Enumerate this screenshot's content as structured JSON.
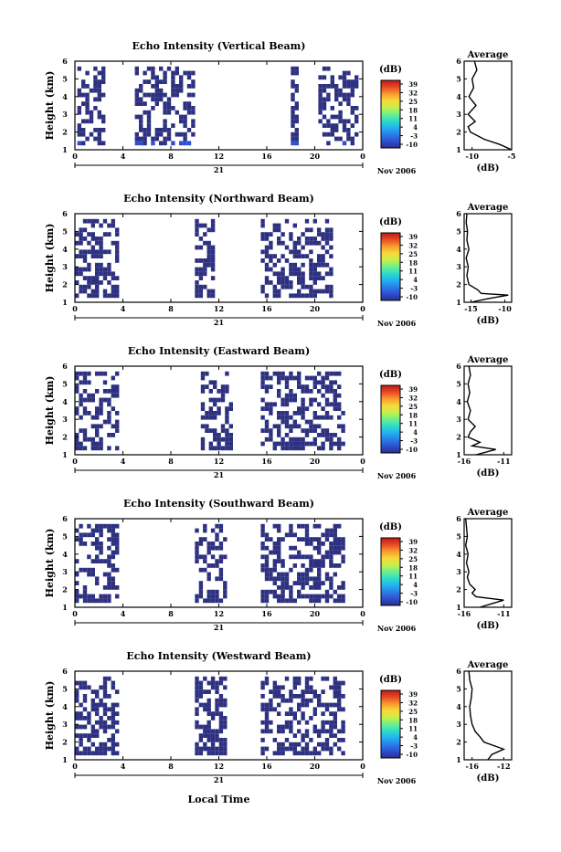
{
  "figure": {
    "date_label": "Nov 2006",
    "day_label": "21",
    "xlabel_bottom": "Local Time",
    "ylabel": "Height (km)",
    "unit_label": "(dB)",
    "average_title": "Average",
    "colorbar_ticks": [
      "39",
      "32",
      "25",
      "18",
      "11",
      "4",
      "-3",
      "-10"
    ],
    "colorbar_colors": [
      "#2b2f8f",
      "#2f4fd0",
      "#2a7fe8",
      "#22b3f0",
      "#2fdcc8",
      "#6ef08a",
      "#c8f04a",
      "#f8d83a",
      "#f89a2e",
      "#e84a25",
      "#c01818"
    ]
  },
  "chart_data": [
    {
      "type": "heatmap",
      "title": "Echo Intensity (Vertical Beam)",
      "xlabel": "",
      "ylabel": "Height (km)",
      "xlim": [
        0,
        24
      ],
      "ylim": [
        1,
        6
      ],
      "x_ticks": [
        "0",
        "4",
        "8",
        "12",
        "16",
        "20",
        "0"
      ],
      "y_ticks": [
        "1",
        "2",
        "3",
        "4",
        "5",
        "6"
      ],
      "colorbar_range": [
        -10,
        39
      ],
      "active_intervals_hours": [
        [
          0.2,
          2.5
        ],
        [
          5.0,
          10.0
        ],
        [
          18.0,
          18.5
        ],
        [
          20.3,
          23.5
        ]
      ],
      "average_profile": {
        "xlim": [
          -11,
          -5
        ],
        "x_ticks": [
          "-10",
          "-5"
        ],
        "height": [
          1.0,
          1.3,
          1.6,
          2.0,
          2.3,
          2.6,
          3.0,
          3.5,
          4.0,
          4.5,
          5.0,
          5.5,
          6.0
        ],
        "value": [
          -5.0,
          -6.5,
          -8.5,
          -10.2,
          -10.5,
          -9.6,
          -10.5,
          -9.5,
          -10.4,
          -9.8,
          -10.0,
          -9.4,
          -9.7
        ]
      }
    },
    {
      "type": "heatmap",
      "title": "Echo Intensity (Northward Beam)",
      "xlabel": "",
      "ylabel": "Height (km)",
      "xlim": [
        0,
        24
      ],
      "ylim": [
        1,
        6
      ],
      "x_ticks": [
        "0",
        "4",
        "8",
        "12",
        "16",
        "20",
        "0"
      ],
      "y_ticks": [
        "1",
        "2",
        "3",
        "4",
        "5",
        "6"
      ],
      "colorbar_range": [
        -10,
        39
      ],
      "active_intervals_hours": [
        [
          0.0,
          3.5
        ],
        [
          10.0,
          11.5
        ],
        [
          15.5,
          21.5
        ]
      ],
      "average_profile": {
        "xlim": [
          -16,
          -9
        ],
        "x_ticks": [
          "-15",
          "-10"
        ],
        "height": [
          1.0,
          1.2,
          1.4,
          1.5,
          1.7,
          2.0,
          2.5,
          3.0,
          3.5,
          4.0,
          4.5,
          5.0,
          5.5,
          6.0
        ],
        "value": [
          -15.0,
          -12.5,
          -9.5,
          -13.5,
          -14.0,
          -15.3,
          -15.6,
          -15.4,
          -15.7,
          -15.3,
          -15.6,
          -15.5,
          -15.7,
          -15.6
        ]
      }
    },
    {
      "type": "heatmap",
      "title": "Echo Intensity (Eastward Beam)",
      "xlabel": "",
      "ylabel": "Height (km)",
      "xlim": [
        0,
        24
      ],
      "ylim": [
        1,
        6
      ],
      "x_ticks": [
        "0",
        "4",
        "8",
        "12",
        "16",
        "20",
        "0"
      ],
      "y_ticks": [
        "1",
        "2",
        "3",
        "4",
        "5",
        "6"
      ],
      "colorbar_range": [
        -10,
        39
      ],
      "active_intervals_hours": [
        [
          0.0,
          3.5
        ],
        [
          10.5,
          13.0
        ],
        [
          15.5,
          22.5
        ]
      ],
      "average_profile": {
        "xlim": [
          -16,
          -10
        ],
        "x_ticks": [
          "-16",
          "-11"
        ],
        "height": [
          1.0,
          1.3,
          1.5,
          1.7,
          2.0,
          2.3,
          2.6,
          3.0,
          3.5,
          4.0,
          4.5,
          5.0,
          5.5,
          6.0
        ],
        "value": [
          -14.5,
          -12.0,
          -15.0,
          -14.0,
          -15.5,
          -15.2,
          -14.6,
          -15.5,
          -15.2,
          -15.6,
          -15.3,
          -15.5,
          -15.2,
          -15.4
        ]
      }
    },
    {
      "type": "heatmap",
      "title": "Echo Intensity (Southward Beam)",
      "xlabel": "",
      "ylabel": "Height (km)",
      "xlim": [
        0,
        24
      ],
      "ylim": [
        1,
        6
      ],
      "x_ticks": [
        "0",
        "4",
        "8",
        "12",
        "16",
        "20",
        "0"
      ],
      "y_ticks": [
        "1",
        "2",
        "3",
        "4",
        "5",
        "6"
      ],
      "colorbar_range": [
        -10,
        39
      ],
      "active_intervals_hours": [
        [
          0.0,
          3.5
        ],
        [
          10.0,
          12.5
        ],
        [
          15.5,
          22.5
        ]
      ],
      "average_profile": {
        "xlim": [
          -16,
          -10
        ],
        "x_ticks": [
          "-16",
          "-11"
        ],
        "height": [
          1.0,
          1.2,
          1.4,
          1.6,
          1.8,
          2.0,
          2.3,
          2.7,
          3.0,
          3.5,
          4.0,
          4.5,
          5.0,
          5.5,
          6.0
        ],
        "value": [
          -14.0,
          -12.5,
          -11.0,
          -14.5,
          -15.0,
          -14.6,
          -15.3,
          -15.6,
          -15.4,
          -15.7,
          -15.5,
          -15.8,
          -15.6,
          -15.7,
          -15.8
        ]
      }
    },
    {
      "type": "heatmap",
      "title": "Echo Intensity (Westward Beam)",
      "xlabel": "Local Time",
      "ylabel": "Height (km)",
      "xlim": [
        0,
        24
      ],
      "ylim": [
        1,
        6
      ],
      "x_ticks": [
        "0",
        "4",
        "8",
        "12",
        "16",
        "20",
        "0"
      ],
      "y_ticks": [
        "1",
        "2",
        "3",
        "4",
        "5",
        "6"
      ],
      "colorbar_range": [
        -10,
        39
      ],
      "active_intervals_hours": [
        [
          0.0,
          3.5
        ],
        [
          10.0,
          12.5
        ],
        [
          15.5,
          22.5
        ]
      ],
      "average_profile": {
        "xlim": [
          -17,
          -11
        ],
        "x_ticks": [
          "-16",
          "-12"
        ],
        "height": [
          1.0,
          1.3,
          1.6,
          2.0,
          2.3,
          2.6,
          3.0,
          3.5,
          4.0,
          4.5,
          5.0,
          5.5,
          6.0
        ],
        "value": [
          -14.0,
          -13.5,
          -12.0,
          -14.5,
          -15.0,
          -15.6,
          -16.0,
          -16.2,
          -16.3,
          -16.1,
          -16.0,
          -16.3,
          -16.4
        ]
      }
    }
  ]
}
